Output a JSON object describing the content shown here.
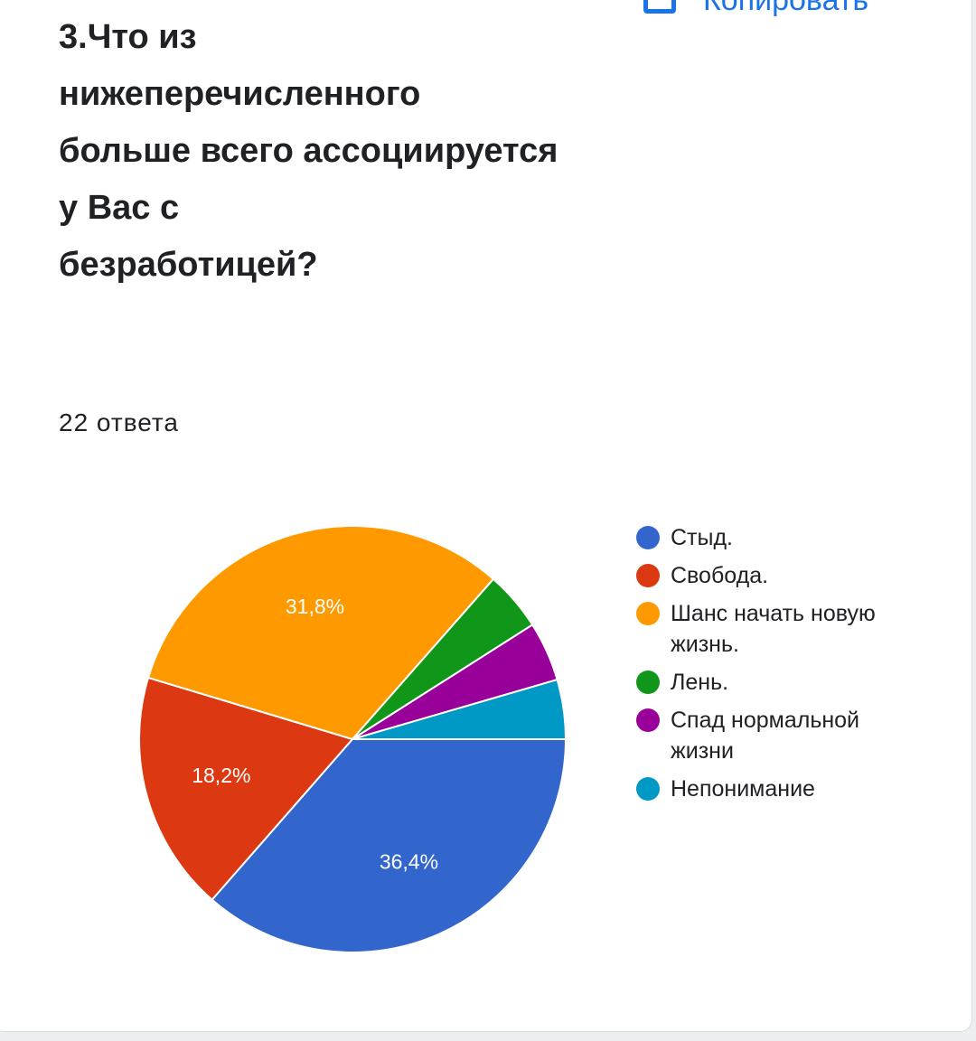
{
  "copy_button": "Копировать",
  "chart_data": {
    "type": "pie",
    "title_lines": [
      "3.Что из",
      "нижеперечисленного",
      "больше всего ассоциируется",
      "у Вас с",
      "безработицей?"
    ],
    "subtitle": "22 ответа",
    "categories": [
      "Стыд.",
      "Свобода.",
      "Шанс начать новую жизнь.",
      "Лень.",
      "Спад нормальной жизни",
      "Непонимание"
    ],
    "values": [
      36.4,
      18.2,
      31.8,
      4.5,
      4.5,
      4.5
    ],
    "value_labels": [
      "36,4%",
      "18,2%",
      "31,8%",
      null,
      null,
      null
    ],
    "colors": [
      "#3366cc",
      "#dc3912",
      "#ff9900",
      "#109618",
      "#990099",
      "#0099c6"
    ]
  }
}
